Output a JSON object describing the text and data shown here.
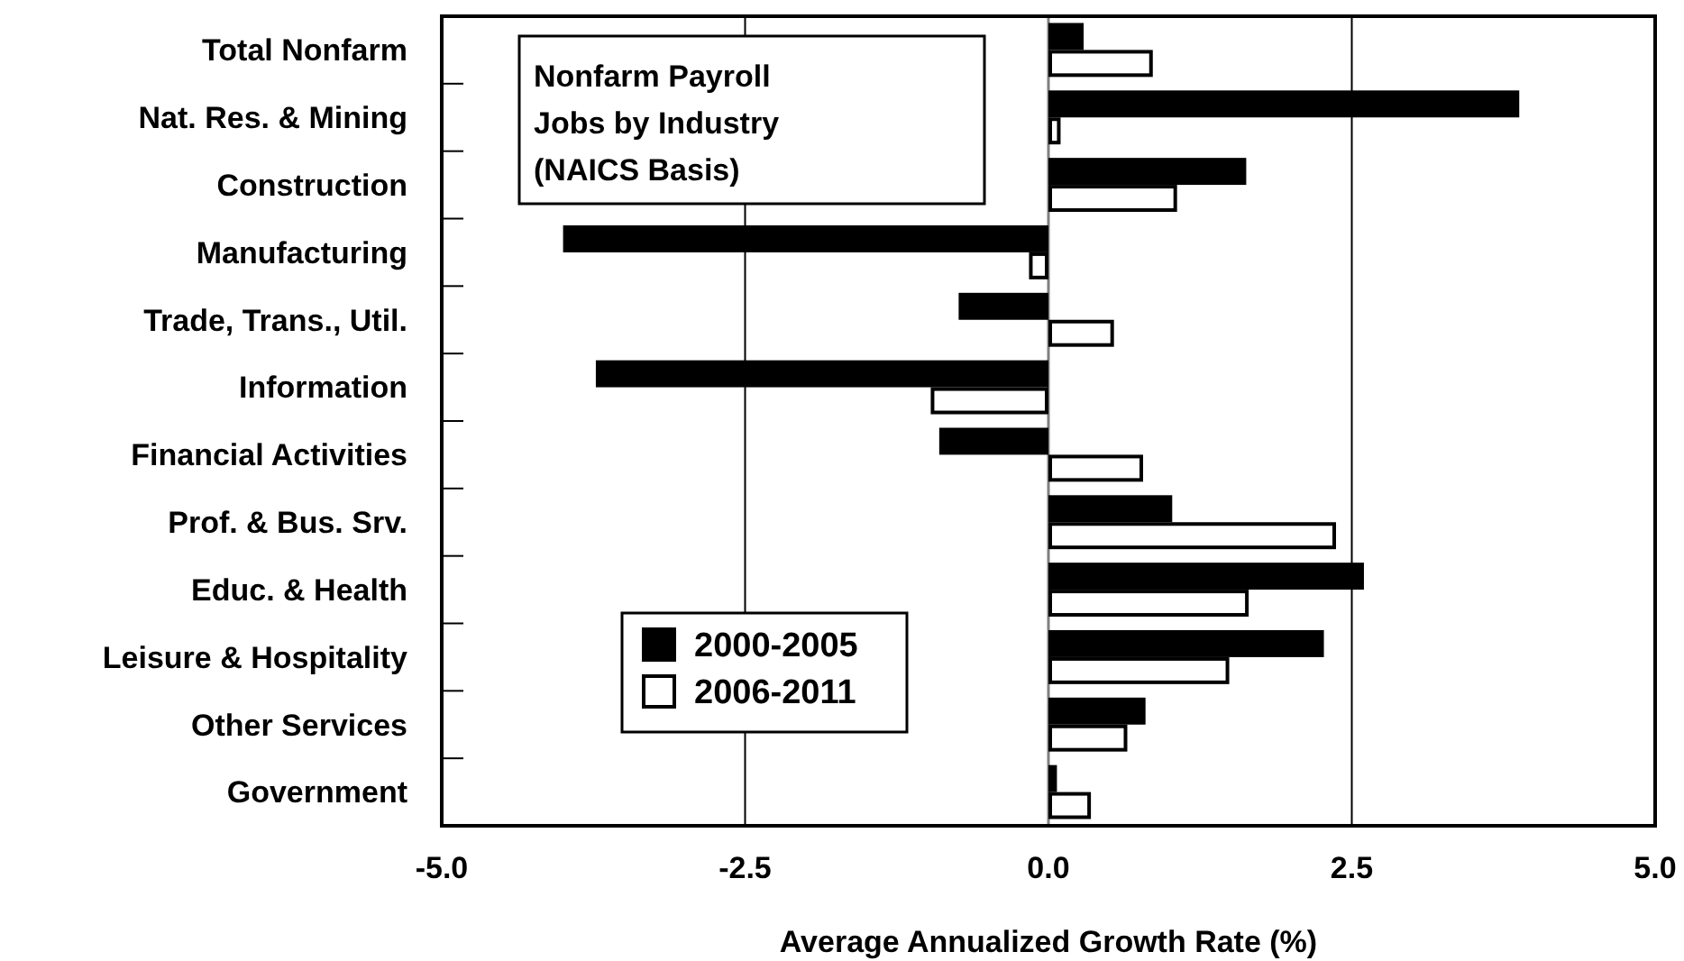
{
  "chart_data": {
    "type": "bar",
    "orientation": "horizontal",
    "title": "Nonfarm Payroll Jobs by Industry (NAICS Basis)",
    "xlabel": "Average Annualized Growth Rate (%)",
    "categories": [
      "Total Nonfarm",
      "Nat. Res. & Mining",
      "Construction",
      "Manufacturing",
      "Trade, Trans., Util.",
      "Information",
      "Financial Activities",
      "Prof. & Bus. Srv.",
      "Educ. & Health",
      "Leisure & Hospitality",
      "Other Services",
      "Government"
    ],
    "series": [
      {
        "name": "2000-2005",
        "color": "#000000",
        "values": [
          0.29,
          3.88,
          1.63,
          -4.0,
          -0.74,
          -3.73,
          -0.9,
          1.02,
          2.6,
          2.27,
          0.8,
          0.07
        ]
      },
      {
        "name": "2006-2011",
        "color": "#ffffff",
        "values": [
          0.86,
          0.1,
          1.06,
          -0.16,
          0.54,
          -0.97,
          0.78,
          2.37,
          1.65,
          1.49,
          0.65,
          0.35
        ]
      }
    ],
    "xlim": [
      -5,
      5
    ],
    "xticks": [
      {
        "value": -5,
        "label": "-5.0"
      },
      {
        "value": -2.5,
        "label": "-2.5"
      },
      {
        "value": 0,
        "label": "0.0"
      },
      {
        "value": 2.5,
        "label": "2.5"
      },
      {
        "value": 5,
        "label": "5.0"
      }
    ],
    "grid": "x",
    "legend": "bottom left"
  }
}
